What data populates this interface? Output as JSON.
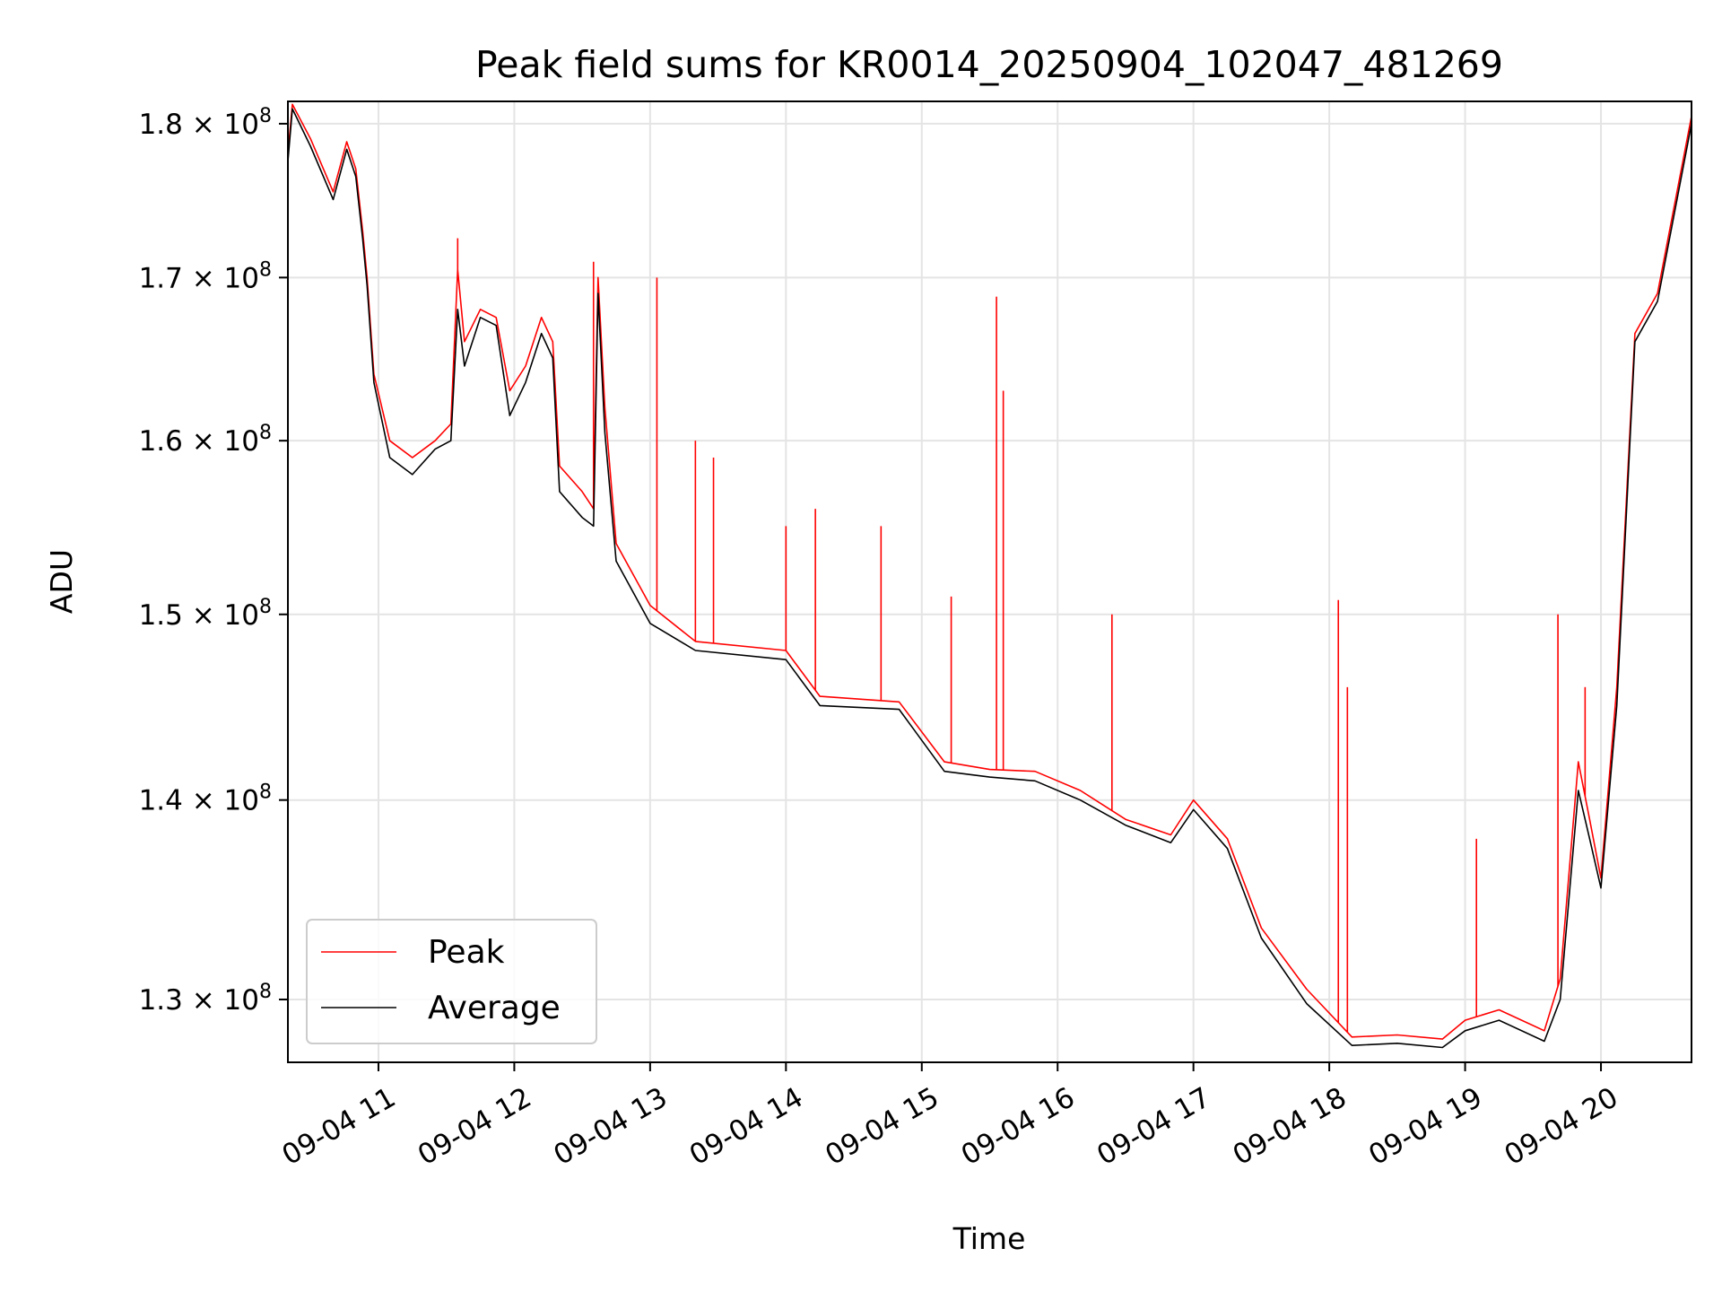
{
  "chart_data": {
    "type": "line",
    "title": "Peak field sums for KR0014_20250904_102047_481269",
    "xlabel": "Time",
    "ylabel": "ADU",
    "y_scale": "log",
    "xlim": [
      "2025-09-04 10:20",
      "2025-09-04 20:40"
    ],
    "ylim": [
      127000000,
      181500000
    ],
    "grid": true,
    "legend_position": "lower left",
    "x_tick_labels": [
      "09-04 11",
      "09-04 12",
      "09-04 13",
      "09-04 14",
      "09-04 15",
      "09-04 16",
      "09-04 17",
      "09-04 18",
      "09-04 19",
      "09-04 20"
    ],
    "x_ticks": [
      "2025-09-04 11:00",
      "2025-09-04 12:00",
      "2025-09-04 13:00",
      "2025-09-04 14:00",
      "2025-09-04 15:00",
      "2025-09-04 16:00",
      "2025-09-04 17:00",
      "2025-09-04 18:00",
      "2025-09-04 19:00",
      "2025-09-04 20:00"
    ],
    "y_ticks": [
      {
        "value": 130000000,
        "mantissa": "1.3",
        "exp": "8"
      },
      {
        "value": 140000000,
        "mantissa": "1.4",
        "exp": "8"
      },
      {
        "value": 150000000,
        "mantissa": "1.5",
        "exp": "8"
      },
      {
        "value": 160000000,
        "mantissa": "1.6",
        "exp": "8"
      },
      {
        "value": 170000000,
        "mantissa": "1.7",
        "exp": "8"
      },
      {
        "value": 180000000,
        "mantissa": "1.8",
        "exp": "8"
      }
    ],
    "series": [
      {
        "name": "Peak",
        "color": "#ff0000",
        "x": [
          "2025-09-04 10:20",
          "2025-09-04 10:22",
          "2025-09-04 10:30",
          "2025-09-04 10:40",
          "2025-09-04 10:46",
          "2025-09-04 10:50",
          "2025-09-04 10:53",
          "2025-09-04 10:55",
          "2025-09-04 10:58",
          "2025-09-04 11:05",
          "2025-09-04 11:15",
          "2025-09-04 11:25",
          "2025-09-04 11:32",
          "2025-09-04 11:35",
          "2025-09-04 11:38",
          "2025-09-04 11:45",
          "2025-09-04 11:52",
          "2025-09-04 11:58",
          "2025-09-04 12:05",
          "2025-09-04 12:12",
          "2025-09-04 12:17",
          "2025-09-04 12:20",
          "2025-09-04 12:30",
          "2025-09-04 12:35",
          "2025-09-04 12:37",
          "2025-09-04 12:40",
          "2025-09-04 12:45",
          "2025-09-04 13:00",
          "2025-09-04 13:20",
          "2025-09-04 14:00",
          "2025-09-04 14:15",
          "2025-09-04 14:50",
          "2025-09-04 15:10",
          "2025-09-04 15:30",
          "2025-09-04 15:50",
          "2025-09-04 16:10",
          "2025-09-04 16:30",
          "2025-09-04 16:50",
          "2025-09-04 17:00",
          "2025-09-04 17:15",
          "2025-09-04 17:30",
          "2025-09-04 17:50",
          "2025-09-04 18:10",
          "2025-09-04 18:30",
          "2025-09-04 18:50",
          "2025-09-04 19:00",
          "2025-09-04 19:15",
          "2025-09-04 19:35",
          "2025-09-04 19:42",
          "2025-09-04 19:50",
          "2025-09-04 19:55",
          "2025-09-04 20:00",
          "2025-09-04 20:07",
          "2025-09-04 20:15",
          "2025-09-04 20:25",
          "2025-09-04 20:40"
        ],
        "y": [
          178000000,
          181300000,
          179000000,
          175500000,
          178800000,
          177000000,
          173000000,
          170000000,
          164000000,
          160000000,
          159000000,
          160000000,
          161000000,
          170500000,
          166000000,
          168000000,
          167500000,
          163000000,
          164500000,
          167500000,
          166000000,
          158500000,
          157000000,
          156000000,
          170000000,
          162000000,
          154000000,
          150500000,
          148500000,
          148000000,
          145500000,
          145200000,
          142000000,
          141600000,
          141500000,
          140500000,
          139000000,
          138200000,
          140000000,
          138000000,
          133500000,
          130500000,
          128200000,
          128300000,
          128100000,
          129000000,
          129500000,
          128500000,
          131000000,
          142000000,
          139000000,
          136000000,
          146000000,
          166500000,
          169000000,
          180500000
        ],
        "spikes": [
          {
            "x": "2025-09-04 11:35",
            "y": 172500000
          },
          {
            "x": "2025-09-04 12:35",
            "y": 171000000
          },
          {
            "x": "2025-09-04 13:03",
            "y": 170000000
          },
          {
            "x": "2025-09-04 13:20",
            "y": 160000000
          },
          {
            "x": "2025-09-04 13:28",
            "y": 159000000
          },
          {
            "x": "2025-09-04 14:00",
            "y": 155000000
          },
          {
            "x": "2025-09-04 14:13",
            "y": 156000000
          },
          {
            "x": "2025-09-04 14:42",
            "y": 155000000
          },
          {
            "x": "2025-09-04 15:13",
            "y": 151000000
          },
          {
            "x": "2025-09-04 15:33",
            "y": 168800000
          },
          {
            "x": "2025-09-04 15:36",
            "y": 163000000
          },
          {
            "x": "2025-09-04 16:24",
            "y": 150000000
          },
          {
            "x": "2025-09-04 18:04",
            "y": 150800000
          },
          {
            "x": "2025-09-04 18:08",
            "y": 146000000
          },
          {
            "x": "2025-09-04 19:05",
            "y": 138000000
          },
          {
            "x": "2025-09-04 19:41",
            "y": 150000000
          },
          {
            "x": "2025-09-04 19:53",
            "y": 146000000
          }
        ]
      },
      {
        "name": "Average",
        "color": "#000000",
        "x": [
          "2025-09-04 10:20",
          "2025-09-04 10:22",
          "2025-09-04 10:30",
          "2025-09-04 10:40",
          "2025-09-04 10:46",
          "2025-09-04 10:50",
          "2025-09-04 10:53",
          "2025-09-04 10:55",
          "2025-09-04 10:58",
          "2025-09-04 11:05",
          "2025-09-04 11:15",
          "2025-09-04 11:25",
          "2025-09-04 11:32",
          "2025-09-04 11:35",
          "2025-09-04 11:38",
          "2025-09-04 11:45",
          "2025-09-04 11:52",
          "2025-09-04 11:58",
          "2025-09-04 12:05",
          "2025-09-04 12:12",
          "2025-09-04 12:17",
          "2025-09-04 12:20",
          "2025-09-04 12:30",
          "2025-09-04 12:35",
          "2025-09-04 12:37",
          "2025-09-04 12:40",
          "2025-09-04 12:45",
          "2025-09-04 13:00",
          "2025-09-04 13:20",
          "2025-09-04 14:00",
          "2025-09-04 14:15",
          "2025-09-04 14:50",
          "2025-09-04 15:10",
          "2025-09-04 15:30",
          "2025-09-04 15:50",
          "2025-09-04 16:10",
          "2025-09-04 16:30",
          "2025-09-04 16:50",
          "2025-09-04 17:00",
          "2025-09-04 17:15",
          "2025-09-04 17:30",
          "2025-09-04 17:50",
          "2025-09-04 18:10",
          "2025-09-04 18:30",
          "2025-09-04 18:50",
          "2025-09-04 19:00",
          "2025-09-04 19:15",
          "2025-09-04 19:35",
          "2025-09-04 19:42",
          "2025-09-04 19:50",
          "2025-09-04 19:55",
          "2025-09-04 20:00",
          "2025-09-04 20:07",
          "2025-09-04 20:15",
          "2025-09-04 20:25",
          "2025-09-04 20:40"
        ],
        "y": [
          177500000,
          181000000,
          178500000,
          175000000,
          178300000,
          176500000,
          172500000,
          169500000,
          163500000,
          159000000,
          158000000,
          159500000,
          160000000,
          168000000,
          164500000,
          167500000,
          167000000,
          161500000,
          163500000,
          166500000,
          165000000,
          157000000,
          155500000,
          155000000,
          169000000,
          160500000,
          153000000,
          149500000,
          148000000,
          147500000,
          145000000,
          144800000,
          141500000,
          141200000,
          141000000,
          140000000,
          138700000,
          137800000,
          139500000,
          137500000,
          133000000,
          129800000,
          127800000,
          127900000,
          127700000,
          128500000,
          129000000,
          128000000,
          130000000,
          140500000,
          138000000,
          135500000,
          145000000,
          166000000,
          168500000,
          180000000
        ]
      }
    ]
  }
}
